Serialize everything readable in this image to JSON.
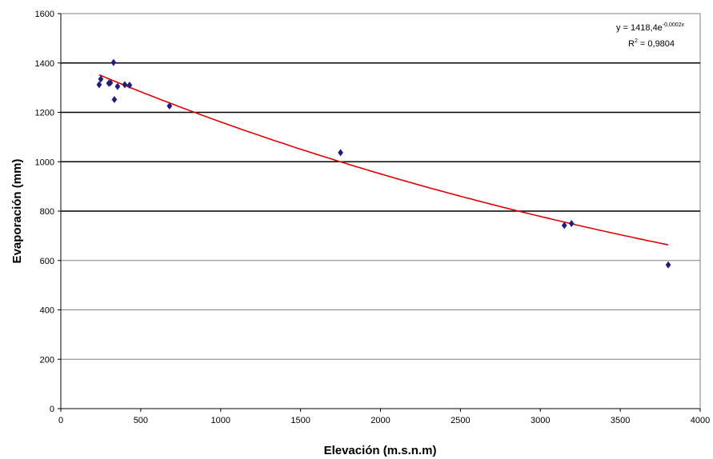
{
  "chart_data": {
    "type": "scatter",
    "xlabel": "Elevación (m.s.n.m)",
    "ylabel": "Evaporación (mm)",
    "xlim": [
      0,
      4000
    ],
    "ylim": [
      0,
      1600
    ],
    "x_ticks": [
      0,
      500,
      1000,
      1500,
      2000,
      2500,
      3000,
      3500,
      4000
    ],
    "y_ticks": [
      0,
      200,
      400,
      600,
      800,
      1000,
      1200,
      1400,
      1600
    ],
    "grid": "horizontal",
    "marker": "diamond",
    "colors": {
      "points": "#1f1f7a",
      "trendline": "#e00000",
      "grid_major": "#000000",
      "grid_minor": "#808080"
    },
    "series": [
      {
        "points": [
          {
            "x": 240,
            "y": 1312
          },
          {
            "x": 250,
            "y": 1335
          },
          {
            "x": 300,
            "y": 1318
          },
          {
            "x": 310,
            "y": 1320
          },
          {
            "x": 330,
            "y": 1402
          },
          {
            "x": 335,
            "y": 1252
          },
          {
            "x": 355,
            "y": 1305
          },
          {
            "x": 400,
            "y": 1312
          },
          {
            "x": 430,
            "y": 1310
          },
          {
            "x": 680,
            "y": 1226
          },
          {
            "x": 1750,
            "y": 1037
          },
          {
            "x": 3150,
            "y": 742
          },
          {
            "x": 3195,
            "y": 750
          },
          {
            "x": 3800,
            "y": 582
          }
        ]
      }
    ],
    "trendline": {
      "type": "exponential",
      "a": 1418.4,
      "b": -0.0002,
      "x_range": [
        240,
        3800
      ],
      "equation_main": "y = 1418,4e",
      "equation_exp": "-0,0002x",
      "r2_label": "R",
      "r2_sup": "2",
      "r2_value": " = 0,9804"
    }
  }
}
